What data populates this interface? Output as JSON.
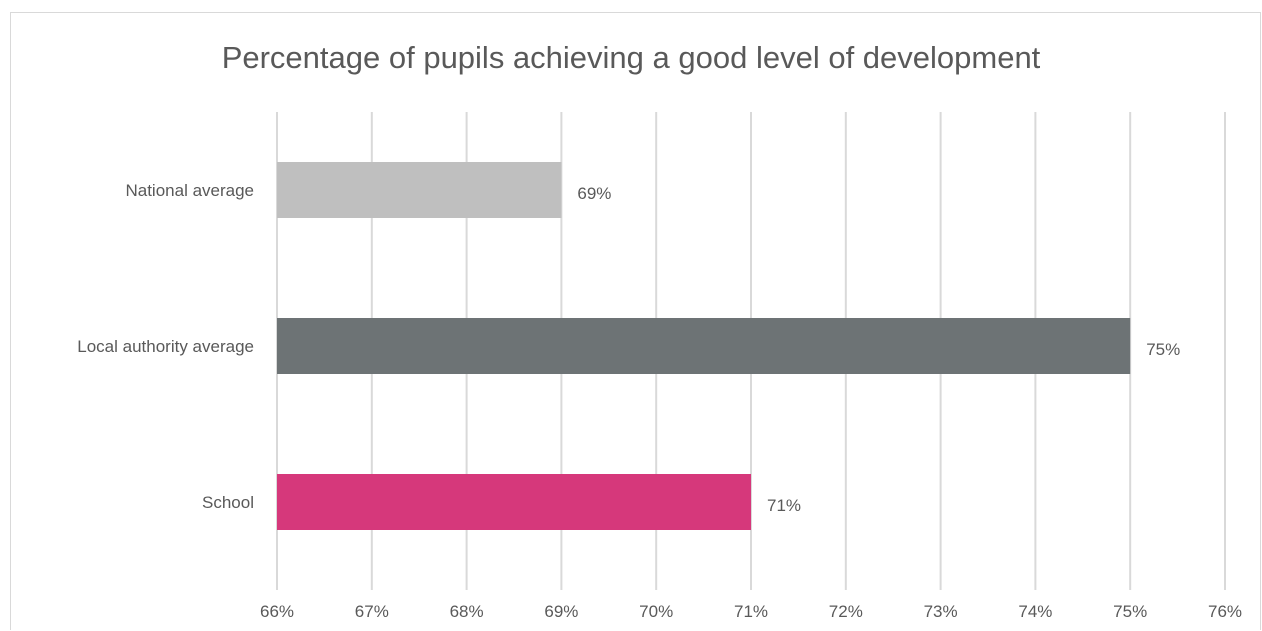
{
  "chart_data": {
    "type": "bar",
    "orientation": "horizontal",
    "title": "Percentage of pupils achieving a good level of development",
    "categories": [
      "National average",
      "Local authority average",
      "School"
    ],
    "values": [
      69,
      75,
      71
    ],
    "value_labels": [
      "69%",
      "75%",
      "71%"
    ],
    "colors": [
      "#bfbfbf",
      "#6d7375",
      "#d6387b"
    ],
    "xlim": [
      66,
      76
    ],
    "x_ticks": [
      "66%",
      "67%",
      "68%",
      "69%",
      "70%",
      "71%",
      "72%",
      "73%",
      "74%",
      "75%",
      "76%"
    ],
    "xlabel": "",
    "ylabel": "",
    "grid": true,
    "legend": "none"
  }
}
